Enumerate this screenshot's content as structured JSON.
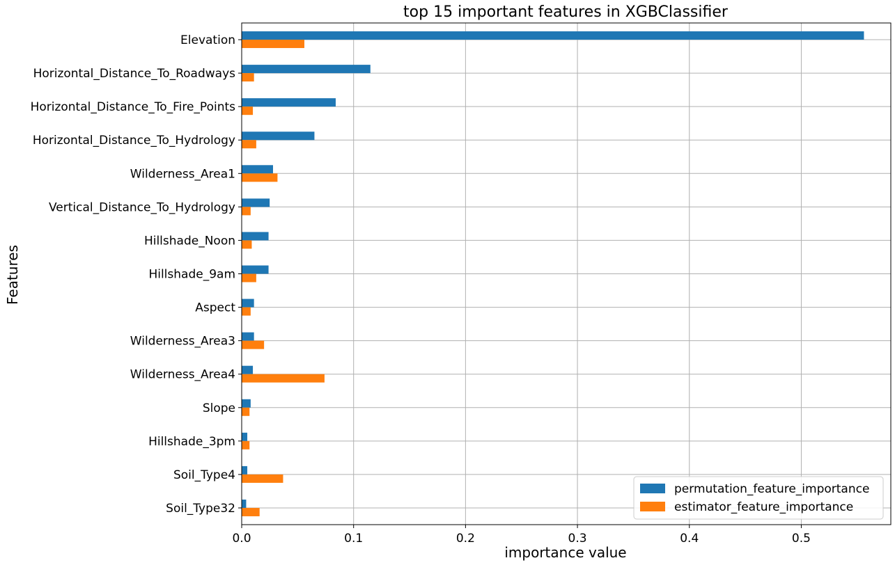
{
  "chart_data": {
    "type": "bar",
    "orientation": "horizontal",
    "title": "top 15 important features in XGBClassifier",
    "xlabel": "importance value",
    "ylabel": "Features",
    "xlim": [
      0,
      0.58
    ],
    "xticks": [
      0.0,
      0.1,
      0.2,
      0.3,
      0.4,
      0.5
    ],
    "xtick_labels": [
      "0.0",
      "0.1",
      "0.2",
      "0.3",
      "0.4",
      "0.5"
    ],
    "grid": true,
    "legend_position": "bottom-right",
    "categories": [
      "Elevation",
      "Horizontal_Distance_To_Roadways",
      "Horizontal_Distance_To_Fire_Points",
      "Horizontal_Distance_To_Hydrology",
      "Wilderness_Area1",
      "Vertical_Distance_To_Hydrology",
      "Hillshade_Noon",
      "Hillshade_9am",
      "Aspect",
      "Wilderness_Area3",
      "Wilderness_Area4",
      "Slope",
      "Hillshade_3pm",
      "Soil_Type4",
      "Soil_Type32"
    ],
    "series": [
      {
        "name": "permutation_feature_importance",
        "color": "#1f77b4",
        "values": [
          0.556,
          0.115,
          0.084,
          0.065,
          0.028,
          0.025,
          0.024,
          0.024,
          0.011,
          0.011,
          0.01,
          0.008,
          0.005,
          0.005,
          0.004
        ]
      },
      {
        "name": "estimator_feature_importance",
        "color": "#ff7f0e",
        "values": [
          0.056,
          0.011,
          0.01,
          0.013,
          0.032,
          0.008,
          0.009,
          0.013,
          0.008,
          0.02,
          0.074,
          0.007,
          0.007,
          0.037,
          0.016
        ]
      }
    ]
  }
}
